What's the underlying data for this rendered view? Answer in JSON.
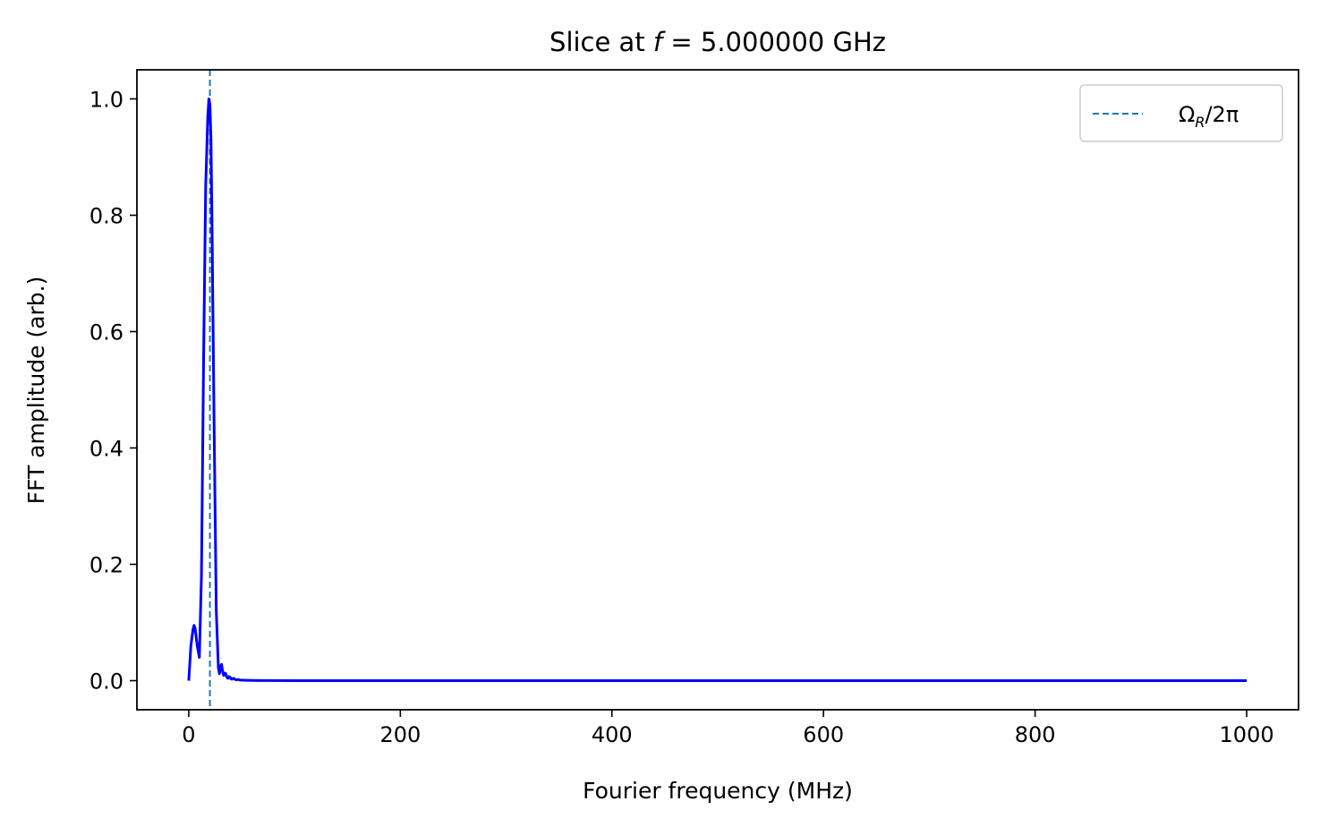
{
  "chart_data": {
    "type": "line",
    "title_prefix": "Slice at ",
    "title_var": "f",
    "title_suffix": " = 5.000000 GHz",
    "xlabel": "Fourier frequency (MHz)",
    "ylabel": "FFT amplitude (arb.)",
    "xlim": [
      -49,
      1049
    ],
    "ylim": [
      -0.05,
      1.05
    ],
    "xticks": [
      0,
      200,
      400,
      600,
      800,
      1000
    ],
    "yticks": [
      0.0,
      0.2,
      0.4,
      0.6,
      0.8,
      1.0
    ],
    "xtick_labels": [
      "0",
      "200",
      "400",
      "600",
      "800",
      "1000"
    ],
    "ytick_labels": [
      "0.0",
      "0.2",
      "0.4",
      "0.6",
      "0.8",
      "1.0"
    ],
    "grid": false,
    "legend_position": "top-right",
    "series": [
      {
        "color": "#0000ff",
        "x": [
          0,
          2,
          4,
          5,
          6,
          8,
          10,
          12,
          14,
          16,
          18,
          19,
          20,
          21,
          22,
          24,
          26,
          28,
          29,
          30,
          31,
          32,
          33,
          34,
          35,
          36,
          37,
          38,
          39,
          40,
          41,
          42,
          43,
          44,
          45,
          46,
          48,
          50,
          55,
          60,
          70,
          80,
          100,
          200,
          400,
          600,
          800,
          1000
        ],
        "y": [
          0.0,
          0.06,
          0.088,
          0.095,
          0.09,
          0.06,
          0.04,
          0.18,
          0.55,
          0.85,
          0.97,
          1.0,
          0.99,
          0.93,
          0.78,
          0.43,
          0.12,
          0.022,
          0.012,
          0.025,
          0.028,
          0.016,
          0.009,
          0.013,
          0.012,
          0.006,
          0.004,
          0.007,
          0.006,
          0.003,
          0.0025,
          0.004,
          0.0035,
          0.002,
          0.0015,
          0.002,
          0.0012,
          0.001,
          0.0006,
          0.0004,
          0.0002,
          0.0001,
          0.0,
          0.0,
          0.0,
          0.0,
          0.0,
          0.0
        ]
      }
    ],
    "reference_lines": [
      {
        "orientation": "vertical",
        "x": 20,
        "style": "dashed",
        "color": "#1f77b4",
        "legend": "Ω_R/2π"
      }
    ],
    "legend": {
      "entry_main": "Ω",
      "entry_sub": "R",
      "entry_tail": "/2π"
    }
  }
}
